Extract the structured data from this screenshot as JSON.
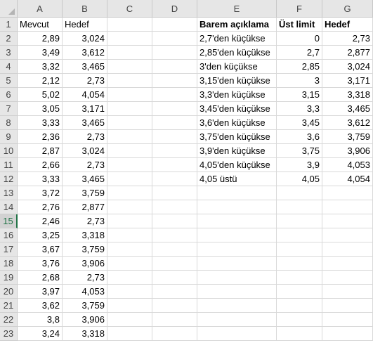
{
  "columns": [
    "A",
    "B",
    "C",
    "D",
    "E",
    "F",
    "G"
  ],
  "rows": [
    "1",
    "2",
    "3",
    "4",
    "5",
    "6",
    "7",
    "8",
    "9",
    "10",
    "11",
    "12",
    "13",
    "14",
    "15",
    "16",
    "17",
    "18",
    "19",
    "20",
    "21",
    "22",
    "23"
  ],
  "active_row": "15",
  "left_table": {
    "headers": [
      "Mevcut",
      "Hedef"
    ],
    "rows": [
      [
        "2,89",
        "3,024"
      ],
      [
        "3,49",
        "3,612"
      ],
      [
        "3,32",
        "3,465"
      ],
      [
        "2,12",
        "2,73"
      ],
      [
        "5,02",
        "4,054"
      ],
      [
        "3,05",
        "3,171"
      ],
      [
        "3,33",
        "3,465"
      ],
      [
        "2,36",
        "2,73"
      ],
      [
        "2,87",
        "3,024"
      ],
      [
        "2,66",
        "2,73"
      ],
      [
        "3,33",
        "3,465"
      ],
      [
        "3,72",
        "3,759"
      ],
      [
        "2,76",
        "2,877"
      ],
      [
        "2,46",
        "2,73"
      ],
      [
        "3,25",
        "3,318"
      ],
      [
        "3,67",
        "3,759"
      ],
      [
        "3,76",
        "3,906"
      ],
      [
        "2,68",
        "2,73"
      ],
      [
        "3,97",
        "4,053"
      ],
      [
        "3,62",
        "3,759"
      ],
      [
        "3,8",
        "3,906"
      ],
      [
        "3,24",
        "3,318"
      ]
    ]
  },
  "right_table": {
    "headers": [
      "Barem açıklama",
      "Üst limit",
      "Hedef"
    ],
    "rows": [
      [
        "2,7'den küçükse",
        "0",
        "2,73"
      ],
      [
        "2,85'den küçükse",
        "2,7",
        "2,877"
      ],
      [
        "3'den küçükse",
        "2,85",
        "3,024"
      ],
      [
        "3,15'den küçükse",
        "3",
        "3,171"
      ],
      [
        "3,3'den küçükse",
        "3,15",
        "3,318"
      ],
      [
        "3,45'den küçükse",
        "3,3",
        "3,465"
      ],
      [
        "3,6'den küçükse",
        "3,45",
        "3,612"
      ],
      [
        "3,75'den küçükse",
        "3,6",
        "3,759"
      ],
      [
        "3,9'den küçükse",
        "3,75",
        "3,906"
      ],
      [
        "4,05'den küçükse",
        "3,9",
        "4,053"
      ],
      [
        "4,05 üstü",
        "4,05",
        "4,054"
      ]
    ]
  },
  "colors": {
    "active_header_accent": "#217346",
    "gridline": "#d9d9d9",
    "header_bg": "#e6e6e6"
  }
}
